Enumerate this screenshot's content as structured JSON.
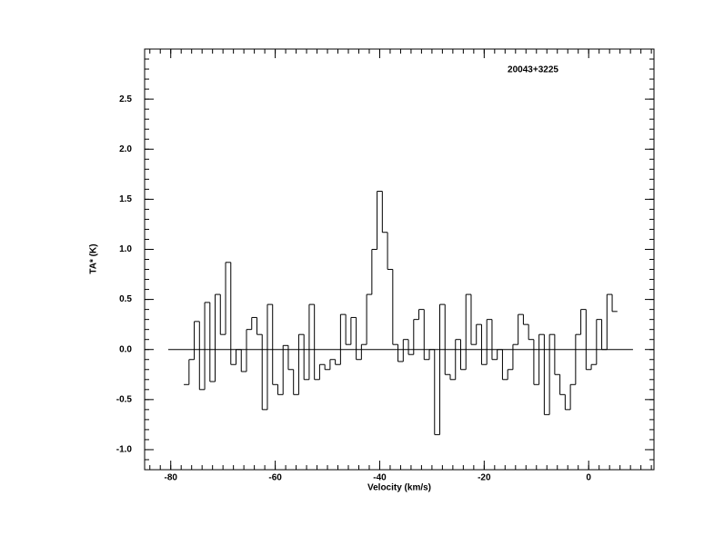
{
  "chart_data": {
    "type": "step",
    "title": "20043+3225",
    "xlabel": "Velocity (km/s)",
    "ylabel": "TA* (K)",
    "x": [
      -77,
      -76,
      -75,
      -74,
      -73,
      -72,
      -71,
      -70,
      -69,
      -68,
      -67,
      -66,
      -65,
      -64,
      -63,
      -62,
      -61,
      -60,
      -59,
      -58,
      -57,
      -56,
      -55,
      -54,
      -53,
      -52,
      -51,
      -50,
      -49,
      -48,
      -47,
      -46,
      -45,
      -44,
      -43,
      -42,
      -41,
      -40,
      -39,
      -38,
      -37,
      -36,
      -35,
      -34,
      -33,
      -32,
      -31,
      -30,
      -29,
      -28,
      -27,
      -26,
      -25,
      -24,
      -23,
      -22,
      -21,
      -20,
      -19,
      -18,
      -17,
      -16,
      -15,
      -14,
      -13,
      -12,
      -11,
      -10,
      -9,
      -8,
      -7,
      -6,
      -5,
      -4,
      -3,
      -2,
      -1,
      0,
      1,
      2,
      3,
      4,
      5
    ],
    "values": [
      -0.35,
      -0.1,
      0.28,
      -0.4,
      0.47,
      -0.32,
      0.55,
      0.15,
      0.87,
      -0.15,
      0.0,
      -0.22,
      0.2,
      0.32,
      0.15,
      -0.6,
      0.45,
      -0.35,
      -0.45,
      0.04,
      -0.2,
      -0.45,
      0.15,
      -0.3,
      0.45,
      -0.3,
      -0.15,
      -0.2,
      -0.1,
      -0.15,
      0.35,
      0.05,
      0.32,
      -0.1,
      0.05,
      0.55,
      1.0,
      1.58,
      1.17,
      0.8,
      0.05,
      -0.12,
      0.1,
      -0.05,
      0.3,
      0.4,
      -0.1,
      0.0,
      -0.85,
      0.45,
      -0.25,
      -0.3,
      0.1,
      -0.2,
      0.55,
      0.05,
      0.25,
      -0.15,
      0.3,
      -0.1,
      0.0,
      -0.3,
      -0.2,
      0.05,
      0.35,
      0.25,
      0.1,
      -0.35,
      0.15,
      -0.65,
      0.15,
      -0.25,
      -0.45,
      -0.6,
      -0.35,
      0.15,
      0.4,
      -0.2,
      -0.15,
      0.3,
      0.0,
      0.55,
      0.38
    ],
    "color": "#000000",
    "reference_line": 0,
    "xlim": [
      -85,
      12.5
    ],
    "ylim": [
      -1.2,
      3.0
    ],
    "xticks": [
      -80,
      -60,
      -40,
      -20,
      0
    ],
    "yticks": [
      {
        "value": -1,
        "label": "-1.0"
      },
      -0.5,
      {
        "value": 0,
        "label": "0.0"
      },
      0.5,
      {
        "value": 1,
        "label": "1.0"
      },
      1.5,
      {
        "value": 2,
        "label": "2.0"
      },
      2.5
    ]
  }
}
